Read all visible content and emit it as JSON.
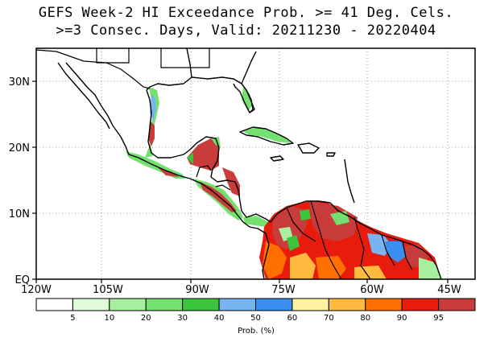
{
  "title": {
    "line1": "GEFS Week-2 HI Exceedance Prob. >= 41 Deg. Cels.",
    "line2": ">=3 Consec. Days, Valid: 20211230 - 20220404"
  },
  "axes": {
    "lat_labels": [
      "30N",
      "20N",
      "10N",
      "EQ"
    ],
    "lon_labels": [
      "120W",
      "105W",
      "90W",
      "75W",
      "60W",
      "45W"
    ]
  },
  "colorbar": {
    "title": "Prob. (%)",
    "colors": [
      "#ffffff",
      "#e0fbd8",
      "#a8f0a0",
      "#74e070",
      "#3cc43c",
      "#7ab4f0",
      "#3c8ef0",
      "#fff2a0",
      "#ffba40",
      "#ff7000",
      "#e81c0c",
      "#c83c3c"
    ],
    "labels": [
      "5",
      "10",
      "20",
      "30",
      "40",
      "50",
      "60",
      "70",
      "80",
      "90",
      "95"
    ]
  },
  "colors": {
    "coast": "#000000",
    "grid": "#9a9a9a"
  }
}
